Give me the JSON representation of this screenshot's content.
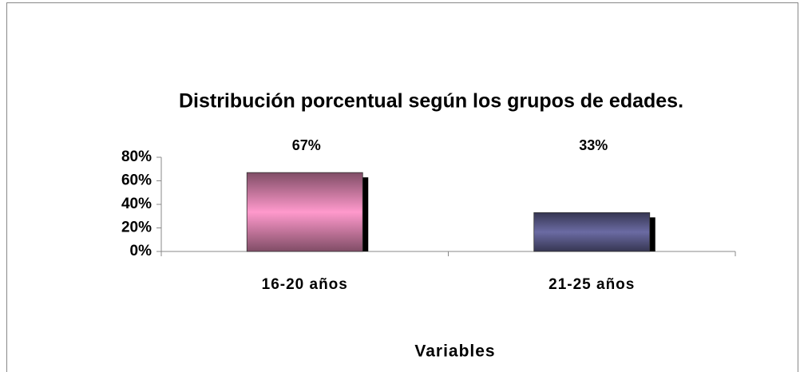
{
  "chart_data": {
    "type": "bar",
    "title": "Distribución porcentual según los grupos de edades.",
    "x_label": "Variables",
    "categories": [
      "16-20 años",
      "21-25 años"
    ],
    "values": [
      67,
      33
    ],
    "value_labels": [
      "67%",
      "33%"
    ],
    "colors": [
      "#ff99cc",
      "#6b6ba3"
    ],
    "ylim": [
      0,
      80
    ],
    "yticks": [
      {
        "value": 0,
        "label": "0%"
      },
      {
        "value": 20,
        "label": "20%"
      },
      {
        "value": 40,
        "label": "40%"
      },
      {
        "value": 60,
        "label": "60%"
      },
      {
        "value": 80,
        "label": "80%"
      }
    ],
    "grid": false
  }
}
